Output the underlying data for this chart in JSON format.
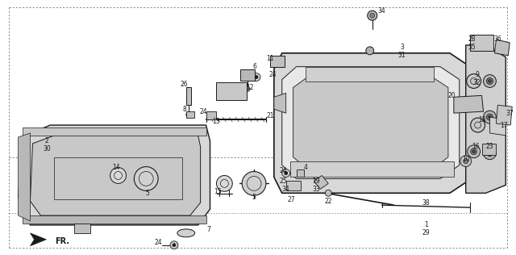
{
  "bg_color": "#f0f0f0",
  "line_color": "#1a1a1a",
  "text_color": "#1a1a1a",
  "fig_width": 6.4,
  "fig_height": 3.16,
  "dpi": 100,
  "perspective_lines": [
    [
      [
        0.01,
        0.52
      ],
      [
        0.38,
        0.96
      ]
    ],
    [
      [
        0.01,
        0.52
      ],
      [
        0.96,
        0.52
      ]
    ],
    [
      [
        0.38,
        0.96
      ],
      [
        0.96,
        0.96
      ]
    ],
    [
      [
        0.96,
        0.52
      ],
      [
        0.96,
        0.96
      ]
    ],
    [
      [
        0.01,
        0.52
      ],
      [
        0.01,
        0.07
      ]
    ],
    [
      [
        0.01,
        0.07
      ],
      [
        0.38,
        0.07
      ]
    ],
    [
      [
        0.38,
        0.07
      ],
      [
        0.96,
        0.07
      ]
    ],
    [
      [
        0.96,
        0.07
      ],
      [
        0.96,
        0.52
      ]
    ]
  ]
}
